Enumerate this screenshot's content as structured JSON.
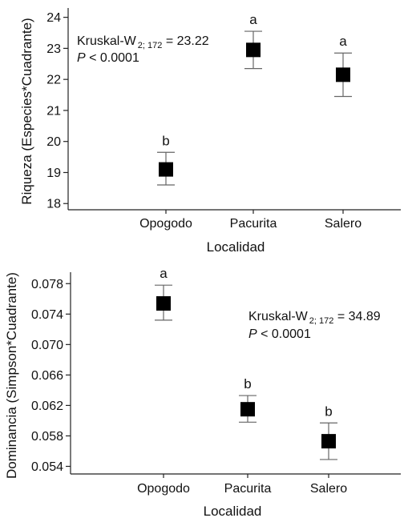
{
  "chart_data": [
    {
      "type": "scatter",
      "error_bars": true,
      "xlabel": "Localidad",
      "ylabel": "Riqueza (Especies*Cuadrante)",
      "categories": [
        "Opogodo",
        "Pacurita",
        "Salero"
      ],
      "values": [
        19.1,
        22.95,
        22.15
      ],
      "error_low": [
        18.6,
        22.35,
        21.45
      ],
      "error_high": [
        19.65,
        23.55,
        22.85
      ],
      "significance": [
        "b",
        "a",
        "a"
      ],
      "ylim": [
        17.8,
        24.3
      ],
      "yticks": [
        18,
        19,
        20,
        21,
        22,
        23,
        24
      ],
      "ytick_labels": [
        "18",
        "19",
        "20",
        "21",
        "22",
        "23",
        "24"
      ],
      "annotation": {
        "stat_prefix": "Kruskal-W",
        "stat_sub": "2; 172",
        "stat_value": " = 23.22",
        "p_symbol": "P",
        "p_value": " < 0.0001"
      },
      "grid": false
    },
    {
      "type": "scatter",
      "error_bars": true,
      "xlabel": "Localidad",
      "ylabel": "Dominancia (Simpson*Cuadrante)",
      "categories": [
        "Opogodo",
        "Pacurita",
        "Salero"
      ],
      "values": [
        0.0754,
        0.0615,
        0.0573
      ],
      "error_low": [
        0.0732,
        0.0598,
        0.0549
      ],
      "error_high": [
        0.0778,
        0.0633,
        0.0597
      ],
      "significance": [
        "a",
        "b",
        "b"
      ],
      "ylim": [
        0.053,
        0.0795
      ],
      "yticks": [
        0.054,
        0.058,
        0.062,
        0.066,
        0.07,
        0.074,
        0.078
      ],
      "ytick_labels": [
        "0.054",
        "0.058",
        "0.062",
        "0.066",
        "0.070",
        "0.074",
        "0.078"
      ],
      "annotation": {
        "stat_prefix": "Kruskal-W",
        "stat_sub": "2; 172",
        "stat_value": " = 34.89",
        "p_symbol": "P",
        "p_value": " < 0.0001"
      },
      "grid": false
    }
  ]
}
